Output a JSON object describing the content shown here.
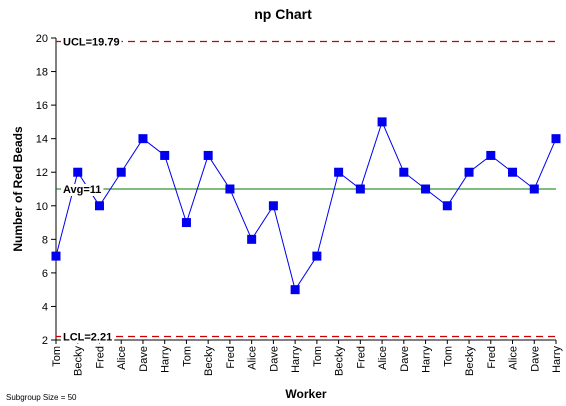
{
  "chart_data": {
    "type": "line",
    "title": "np Chart",
    "xlabel": "Worker",
    "ylabel": "Number of Red Beads",
    "ylim": [
      2,
      20
    ],
    "yticks": [
      2,
      4,
      6,
      8,
      10,
      12,
      14,
      16,
      18,
      20
    ],
    "categories": [
      "Tom",
      "Becky",
      "Fred",
      "Alice",
      "Dave",
      "Harry",
      "Tom",
      "Becky",
      "Fred",
      "Alice",
      "Dave",
      "Harry",
      "Tom",
      "Becky",
      "Fred",
      "Alice",
      "Dave",
      "Harry",
      "Tom",
      "Becky",
      "Fred",
      "Alice",
      "Dave",
      "Harry"
    ],
    "values": [
      7,
      12,
      10,
      12,
      14,
      13,
      9,
      13,
      11,
      8,
      10,
      5,
      7,
      12,
      11,
      15,
      12,
      11,
      10,
      12,
      13,
      12,
      11,
      14
    ],
    "series_color": "#0000ee",
    "ucl": {
      "value": 19.79,
      "label": "UCL=19.79",
      "color": "#cc0000"
    },
    "avg": {
      "value": 11,
      "label": "Avg=11",
      "color": "#007700"
    },
    "lcl": {
      "value": 2.21,
      "label": "LCL=2.21",
      "color": "#cc0000"
    },
    "grid": false,
    "legend": "none"
  },
  "footnote": "Subgroup Size = 50"
}
